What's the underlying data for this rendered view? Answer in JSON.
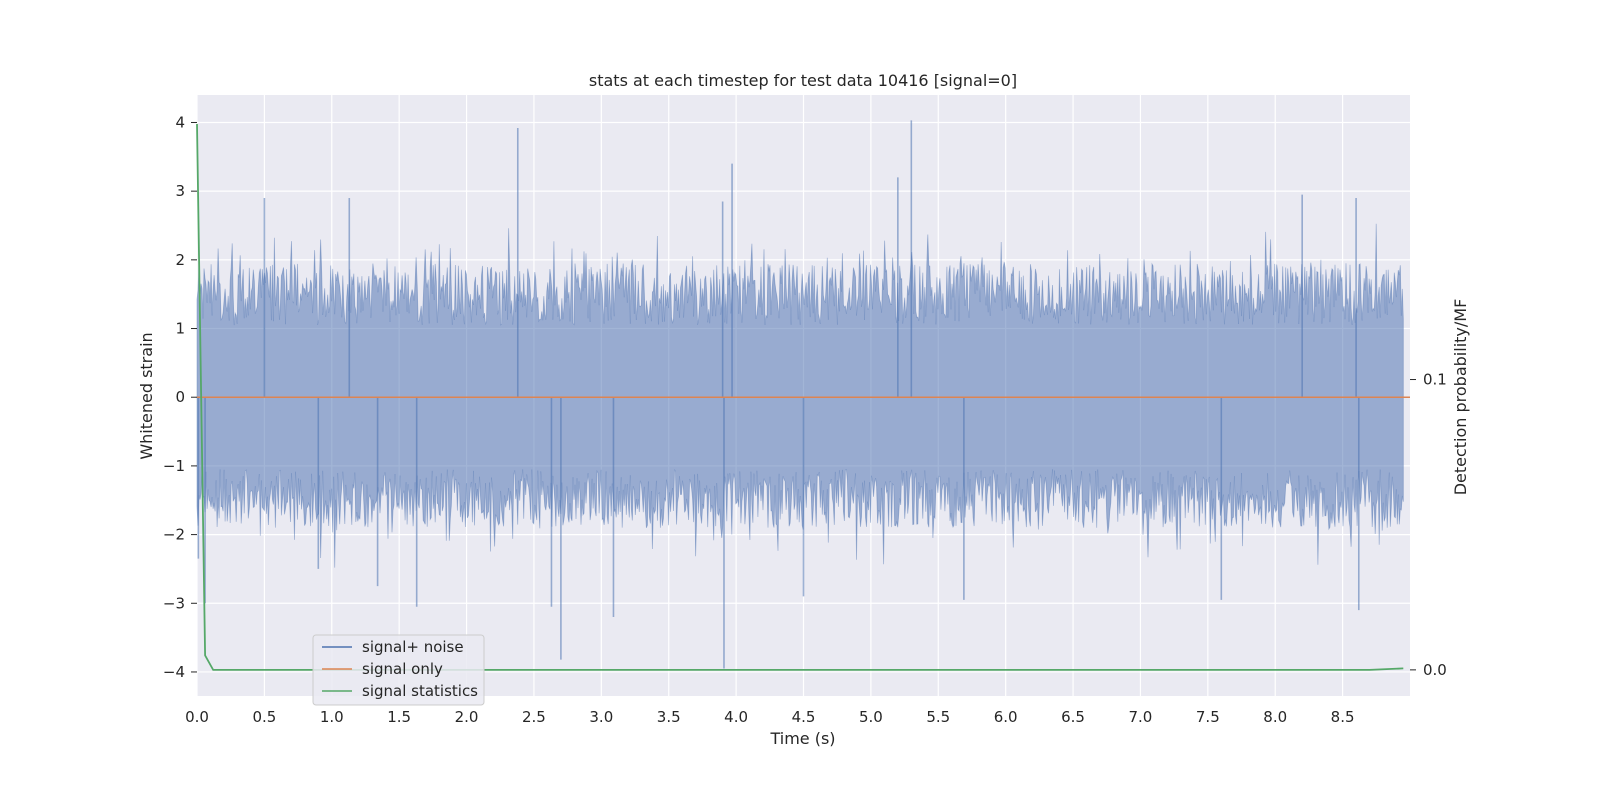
{
  "chart_data": {
    "type": "line",
    "title": "stats at each timestep for test data 10416 [signal=0]",
    "xlabel": "Time (s)",
    "ylabel": "Whitened strain",
    "y2label": "Detection probability/MF",
    "xlim": [
      0,
      9.0
    ],
    "ylim": [
      -4.35,
      4.4
    ],
    "y2lim": [
      -0.009,
      0.198
    ],
    "x_ticks": [
      0.0,
      0.5,
      1.0,
      1.5,
      2.0,
      2.5,
      3.0,
      3.5,
      4.0,
      4.5,
      5.0,
      5.5,
      6.0,
      6.5,
      7.0,
      7.5,
      8.0,
      8.5
    ],
    "x_tick_labels": [
      "0.0",
      "0.5",
      "1.0",
      "1.5",
      "2.0",
      "2.5",
      "3.0",
      "3.5",
      "4.0",
      "4.5",
      "5.0",
      "5.5",
      "6.0",
      "6.5",
      "7.0",
      "7.5",
      "8.0",
      "8.5"
    ],
    "y_ticks": [
      4,
      3,
      2,
      1,
      0,
      -1,
      -2,
      -3,
      -4
    ],
    "y_tick_labels": [
      "4",
      "3",
      "2",
      "1",
      "0",
      "−1",
      "−2",
      "−3",
      "−4"
    ],
    "y2_ticks": [
      0.1,
      0.0
    ],
    "y2_tick_labels": [
      "0.1",
      "0.0"
    ],
    "grid": true,
    "legend_position": "lower-left",
    "colors": {
      "background": "#eaeaf2",
      "grid": "#ffffff",
      "signal_noise": "#4c72b0",
      "signal_only": "#dd8452",
      "signal_statistics": "#55a868"
    },
    "series": [
      {
        "name": "signal+ noise",
        "axis": "left",
        "color": "#4c72b0",
        "description": "whitened strain samples, noise only, amplitude mostly within ±2",
        "spikes": [
          {
            "x": 0.01,
            "y": -2.35
          },
          {
            "x": 0.06,
            "y": -3.0
          },
          {
            "x": 0.5,
            "y": 2.9
          },
          {
            "x": 0.9,
            "y": -2.5
          },
          {
            "x": 1.13,
            "y": 2.9
          },
          {
            "x": 1.34,
            "y": -2.75
          },
          {
            "x": 1.63,
            "y": -3.05
          },
          {
            "x": 2.38,
            "y": 3.92
          },
          {
            "x": 2.63,
            "y": -3.05
          },
          {
            "x": 2.7,
            "y": -3.82
          },
          {
            "x": 3.09,
            "y": -3.2
          },
          {
            "x": 3.9,
            "y": 2.85
          },
          {
            "x": 3.91,
            "y": -3.95
          },
          {
            "x": 3.97,
            "y": 3.4
          },
          {
            "x": 4.5,
            "y": -2.9
          },
          {
            "x": 5.2,
            "y": 3.2
          },
          {
            "x": 5.3,
            "y": 4.03
          },
          {
            "x": 5.69,
            "y": -2.95
          },
          {
            "x": 7.6,
            "y": -2.95
          },
          {
            "x": 8.2,
            "y": 2.95
          },
          {
            "x": 8.6,
            "y": 2.9
          },
          {
            "x": 8.62,
            "y": -3.1
          }
        ]
      },
      {
        "name": "signal only",
        "axis": "left",
        "color": "#dd8452",
        "x": [
          0.0,
          9.0
        ],
        "y": [
          0.0,
          0.0
        ]
      },
      {
        "name": "signal statistics",
        "axis": "right",
        "color": "#55a868",
        "x": [
          0.0,
          0.06,
          0.12,
          0.5,
          1.0,
          2.0,
          3.0,
          4.0,
          5.0,
          6.0,
          7.0,
          8.0,
          8.7,
          8.95
        ],
        "y": [
          0.188,
          0.005,
          0.0,
          0.0,
          0.0,
          0.0,
          0.0,
          0.0,
          0.0,
          0.0,
          0.0,
          0.0,
          0.0,
          0.0005
        ]
      }
    ]
  }
}
